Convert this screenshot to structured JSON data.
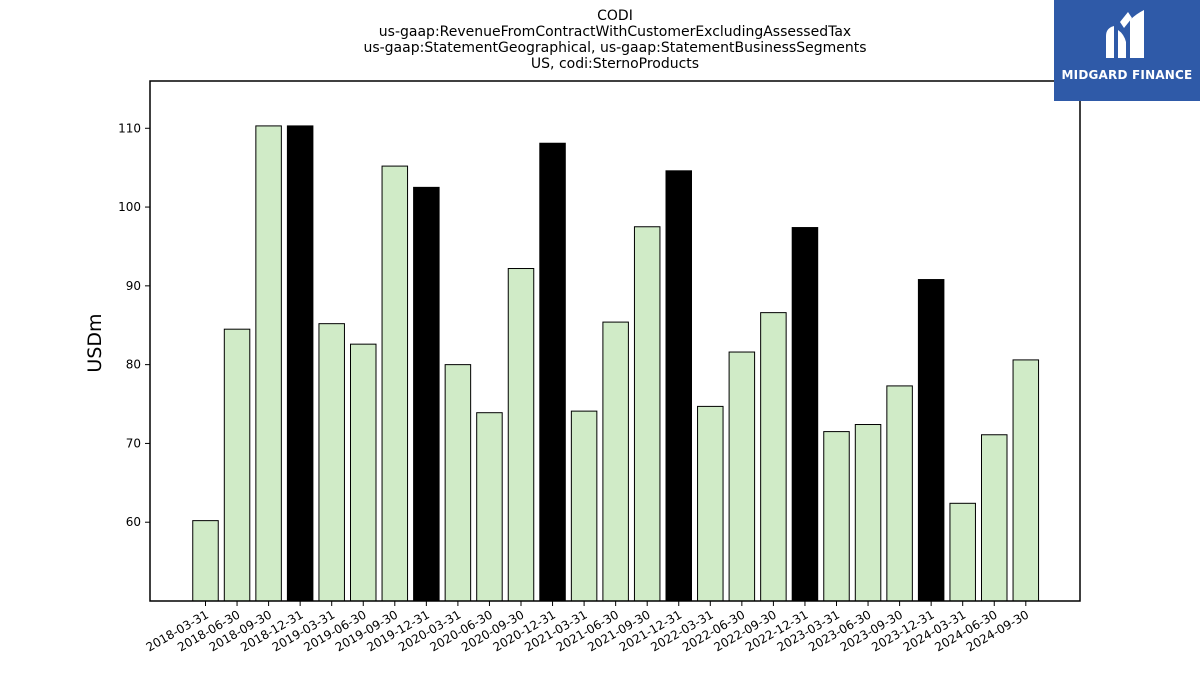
{
  "chart_data": {
    "type": "bar",
    "title_lines": [
      "CODI",
      "us-gaap:RevenueFromContractWithCustomerExcludingAssessedTax",
      "us-gaap:StatementGeographical, us-gaap:StatementBusinessSegments",
      "US, codi:SternoProducts"
    ],
    "ylabel": "USDm",
    "xlabel": "",
    "ylim": [
      50,
      116
    ],
    "yticks": [
      60,
      70,
      80,
      90,
      100,
      110
    ],
    "categories": [
      "2018-03-31",
      "2018-06-30",
      "2018-09-30",
      "2018-12-31",
      "2019-03-31",
      "2019-06-30",
      "2019-09-30",
      "2019-12-31",
      "2020-03-31",
      "2020-06-30",
      "2020-09-30",
      "2020-12-31",
      "2021-03-31",
      "2021-06-30",
      "2021-09-30",
      "2021-12-31",
      "2022-03-31",
      "2022-06-30",
      "2022-09-30",
      "2022-12-31",
      "2023-03-31",
      "2023-06-30",
      "2023-09-30",
      "2023-12-31",
      "2024-03-31",
      "2024-06-30",
      "2024-09-30"
    ],
    "values": [
      60.2,
      84.5,
      110.3,
      110.3,
      85.2,
      82.6,
      105.2,
      102.5,
      80.0,
      73.9,
      92.2,
      108.1,
      74.1,
      85.4,
      97.5,
      104.6,
      74.7,
      81.6,
      86.6,
      97.4,
      71.5,
      72.4,
      77.3,
      90.8,
      62.4,
      71.1,
      80.6
    ],
    "highlight_categories": [
      "2018-12-31",
      "2019-12-31",
      "2020-12-31",
      "2021-12-31",
      "2022-12-31",
      "2023-12-31"
    ],
    "colors": {
      "bar": "#d0ebc7",
      "highlight": "#000000",
      "edge": "#000000"
    },
    "grid": false
  },
  "logo": {
    "text": "MIDGARD FINANCE",
    "background": "#2f5aa8"
  }
}
